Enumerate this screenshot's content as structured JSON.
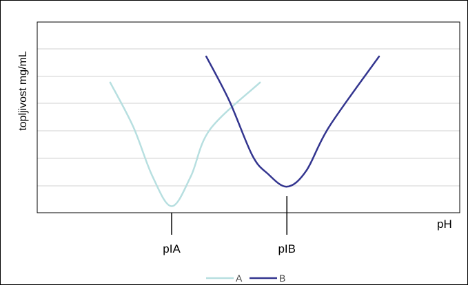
{
  "chart_data": {
    "type": "line",
    "ylabel": "topljivost mg/mL",
    "xlabel": "pH",
    "x_ticks": [
      {
        "label": "pIA",
        "x": 3.5
      },
      {
        "label": "pIB",
        "x": 6.5
      }
    ],
    "xlim": [
      0,
      11
    ],
    "ylim": [
      0,
      6
    ],
    "grid": true,
    "grid_y": [
      1,
      2,
      3,
      4,
      5
    ],
    "legend_position": "bottom",
    "series": [
      {
        "name": "A",
        "color": "#b7dfe0",
        "points": [
          [
            1.9,
            5.0
          ],
          [
            2.5,
            3.3
          ],
          [
            3.0,
            1.4
          ],
          [
            3.5,
            0.25
          ],
          [
            4.0,
            1.4
          ],
          [
            4.5,
            3.2
          ],
          [
            5.8,
            5.0
          ]
        ]
      },
      {
        "name": "B",
        "color": "#33358f",
        "points": [
          [
            4.4,
            6.0
          ],
          [
            5.0,
            4.3
          ],
          [
            5.6,
            2.2
          ],
          [
            6.0,
            1.5
          ],
          [
            6.5,
            1.0
          ],
          [
            7.0,
            1.6
          ],
          [
            7.6,
            3.3
          ],
          [
            8.9,
            6.0
          ]
        ]
      }
    ]
  }
}
